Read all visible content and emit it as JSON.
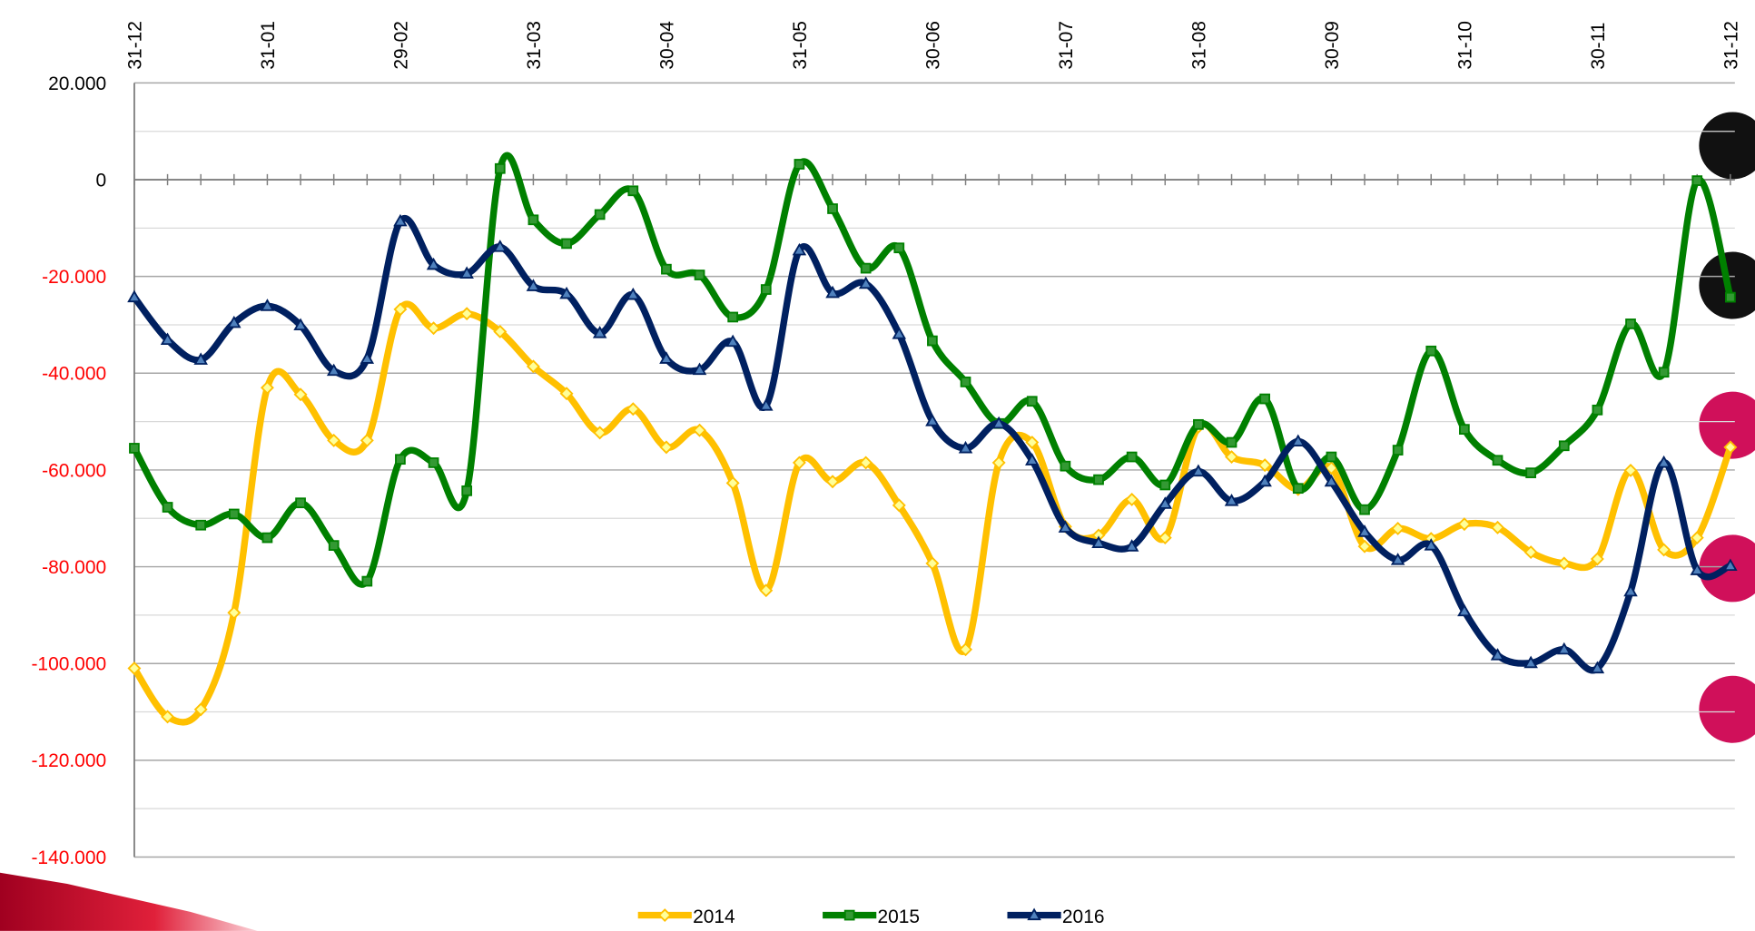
{
  "chart_data": {
    "type": "line",
    "categories": [
      "31-12",
      null,
      null,
      null,
      "31-01",
      null,
      null,
      null,
      "29-02",
      null,
      null,
      null,
      "31-03",
      null,
      null,
      null,
      "30-04",
      null,
      null,
      null,
      "31-05",
      null,
      null,
      null,
      "30-06",
      null,
      null,
      null,
      "31-07",
      null,
      null,
      null,
      "31-08",
      null,
      null,
      null,
      "30-09",
      null,
      null,
      null,
      "31-10",
      null,
      null,
      null,
      "30-11",
      null,
      null,
      null,
      "31-12"
    ],
    "ylim": [
      -140000,
      20000
    ],
    "yticks": [
      {
        "value": 20000,
        "label": "20.000"
      },
      0,
      {
        "value": -20000,
        "label": "-20.000"
      },
      {
        "value": -40000,
        "label": "-40.000"
      },
      {
        "value": -60000,
        "label": "-60.000"
      },
      {
        "value": -80000,
        "label": "-80.000"
      },
      {
        "value": -100000,
        "label": "-100.000"
      },
      {
        "value": -120000,
        "label": "-120.000"
      },
      {
        "value": -140000,
        "label": "-140.000"
      }
    ],
    "negative_tick_color": "#ff0000",
    "grid": true,
    "smooth": true,
    "legend": "bottom",
    "series": [
      {
        "name": "2014",
        "color": "#ffc000",
        "marker": "diamond",
        "marker_fill": "#ffff99",
        "values": [
          -101000,
          -111000,
          -109500,
          -89500,
          -43000,
          -44400,
          -53900,
          -53900,
          -26800,
          -30700,
          -27700,
          -31400,
          -38600,
          -44200,
          -52300,
          -47400,
          -55300,
          -51800,
          -62700,
          -84900,
          -58500,
          -62400,
          -58500,
          -67300,
          -79300,
          -97100,
          -58500,
          -54300,
          -71700,
          -73500,
          -66100,
          -74000,
          -51100,
          -57300,
          -59000,
          -64000,
          -59600,
          -75800,
          -72100,
          -74200,
          -71200,
          -71900,
          -77000,
          -79300,
          -78400,
          -60100,
          -76500,
          -74000,
          -55300
        ]
      },
      {
        "name": "2015",
        "color": "#008000",
        "marker": "square",
        "marker_fill": "#339933",
        "values": [
          -55500,
          -67700,
          -71400,
          -69100,
          -74000,
          -66800,
          -75600,
          -83000,
          -57800,
          -58500,
          -64300,
          2300,
          -8300,
          -13200,
          -7200,
          -2300,
          -18500,
          -19700,
          -28400,
          -22700,
          3200,
          -6000,
          -18300,
          -14100,
          -33300,
          -41800,
          -50400,
          -45800,
          -59200,
          -62000,
          -57300,
          -63100,
          -50600,
          -54300,
          -45300,
          -63800,
          -57300,
          -68200,
          -55900,
          -35400,
          -51600,
          -58000,
          -60600,
          -55000,
          -47600,
          -29800,
          -39800,
          -200,
          -24300
        ]
      },
      {
        "name": "2016",
        "color": "#002060",
        "marker": "triangle",
        "marker_fill": "#4f81bd",
        "values": [
          -24300,
          -33100,
          -37200,
          -29600,
          -26100,
          -30100,
          -39500,
          -37000,
          -8600,
          -17600,
          -19400,
          -13900,
          -22000,
          -23600,
          -31700,
          -23800,
          -37000,
          -39300,
          -33500,
          -46700,
          -14600,
          -23400,
          -21500,
          -31900,
          -49900,
          -55500,
          -50400,
          -58000,
          -71900,
          -75100,
          -75800,
          -67000,
          -60300,
          -66400,
          -62400,
          -54100,
          -62400,
          -72800,
          -78600,
          -75600,
          -89200,
          -98300,
          -99900,
          -97100,
          -101000,
          -85100,
          -58500,
          -80700,
          -79800
        ]
      }
    ]
  }
}
